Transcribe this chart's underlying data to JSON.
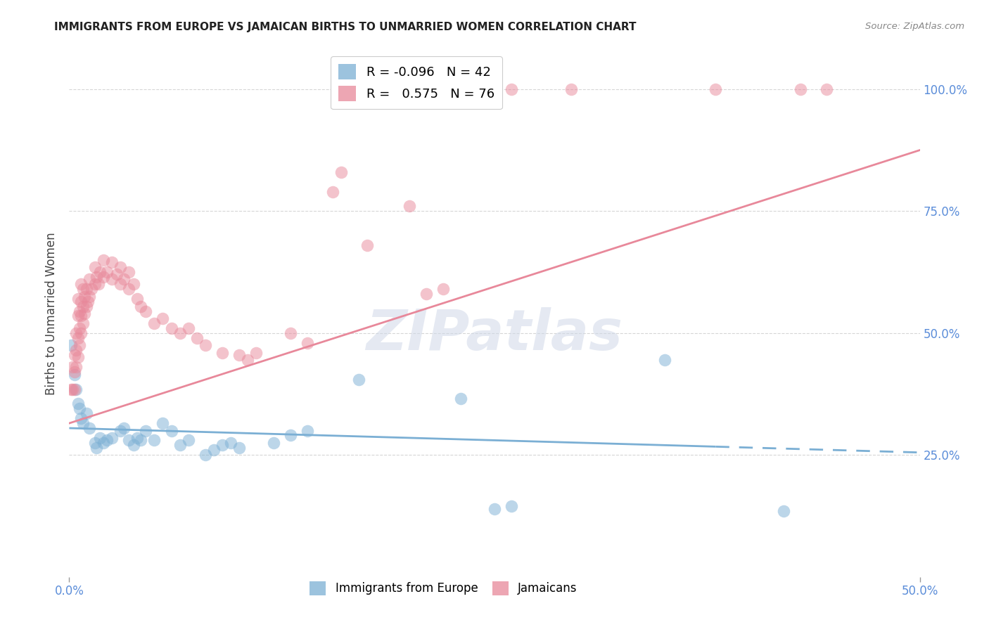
{
  "title": "IMMIGRANTS FROM EUROPE VS JAMAICAN BIRTHS TO UNMARRIED WOMEN CORRELATION CHART",
  "source": "Source: ZipAtlas.com",
  "ylabel": "Births to Unmarried Women",
  "xlim": [
    0.0,
    0.5
  ],
  "ylim": [
    0.0,
    1.08
  ],
  "blue_color": "#7bafd4",
  "pink_color": "#e8889a",
  "legend_blue_R": "-0.096",
  "legend_blue_N": "42",
  "legend_pink_R": "0.575",
  "legend_pink_N": "76",
  "blue_scatter": [
    [
      0.001,
      0.475
    ],
    [
      0.003,
      0.415
    ],
    [
      0.004,
      0.385
    ],
    [
      0.005,
      0.355
    ],
    [
      0.006,
      0.345
    ],
    [
      0.007,
      0.325
    ],
    [
      0.008,
      0.315
    ],
    [
      0.01,
      0.335
    ],
    [
      0.012,
      0.305
    ],
    [
      0.015,
      0.275
    ],
    [
      0.016,
      0.265
    ],
    [
      0.018,
      0.285
    ],
    [
      0.02,
      0.275
    ],
    [
      0.022,
      0.28
    ],
    [
      0.025,
      0.285
    ],
    [
      0.03,
      0.3
    ],
    [
      0.032,
      0.305
    ],
    [
      0.035,
      0.28
    ],
    [
      0.038,
      0.27
    ],
    [
      0.04,
      0.285
    ],
    [
      0.042,
      0.28
    ],
    [
      0.045,
      0.3
    ],
    [
      0.05,
      0.28
    ],
    [
      0.055,
      0.315
    ],
    [
      0.06,
      0.3
    ],
    [
      0.065,
      0.27
    ],
    [
      0.07,
      0.28
    ],
    [
      0.08,
      0.25
    ],
    [
      0.085,
      0.26
    ],
    [
      0.09,
      0.27
    ],
    [
      0.095,
      0.275
    ],
    [
      0.1,
      0.265
    ],
    [
      0.12,
      0.275
    ],
    [
      0.13,
      0.29
    ],
    [
      0.14,
      0.3
    ],
    [
      0.17,
      0.405
    ],
    [
      0.23,
      0.365
    ],
    [
      0.25,
      0.14
    ],
    [
      0.26,
      0.145
    ],
    [
      0.35,
      0.445
    ],
    [
      0.42,
      0.135
    ]
  ],
  "pink_scatter": [
    [
      0.001,
      0.385
    ],
    [
      0.002,
      0.385
    ],
    [
      0.002,
      0.43
    ],
    [
      0.003,
      0.385
    ],
    [
      0.003,
      0.42
    ],
    [
      0.003,
      0.455
    ],
    [
      0.004,
      0.43
    ],
    [
      0.004,
      0.465
    ],
    [
      0.004,
      0.5
    ],
    [
      0.005,
      0.45
    ],
    [
      0.005,
      0.49
    ],
    [
      0.005,
      0.535
    ],
    [
      0.005,
      0.57
    ],
    [
      0.006,
      0.475
    ],
    [
      0.006,
      0.51
    ],
    [
      0.006,
      0.545
    ],
    [
      0.007,
      0.5
    ],
    [
      0.007,
      0.535
    ],
    [
      0.007,
      0.565
    ],
    [
      0.007,
      0.6
    ],
    [
      0.008,
      0.52
    ],
    [
      0.008,
      0.555
    ],
    [
      0.008,
      0.59
    ],
    [
      0.009,
      0.54
    ],
    [
      0.009,
      0.575
    ],
    [
      0.01,
      0.555
    ],
    [
      0.01,
      0.59
    ],
    [
      0.011,
      0.565
    ],
    [
      0.012,
      0.575
    ],
    [
      0.012,
      0.61
    ],
    [
      0.013,
      0.59
    ],
    [
      0.015,
      0.6
    ],
    [
      0.015,
      0.635
    ],
    [
      0.016,
      0.615
    ],
    [
      0.017,
      0.6
    ],
    [
      0.018,
      0.625
    ],
    [
      0.02,
      0.615
    ],
    [
      0.02,
      0.65
    ],
    [
      0.022,
      0.625
    ],
    [
      0.025,
      0.61
    ],
    [
      0.025,
      0.645
    ],
    [
      0.028,
      0.62
    ],
    [
      0.03,
      0.6
    ],
    [
      0.03,
      0.635
    ],
    [
      0.032,
      0.61
    ],
    [
      0.035,
      0.59
    ],
    [
      0.035,
      0.625
    ],
    [
      0.038,
      0.6
    ],
    [
      0.04,
      0.57
    ],
    [
      0.042,
      0.555
    ],
    [
      0.045,
      0.545
    ],
    [
      0.05,
      0.52
    ],
    [
      0.055,
      0.53
    ],
    [
      0.06,
      0.51
    ],
    [
      0.065,
      0.5
    ],
    [
      0.07,
      0.51
    ],
    [
      0.075,
      0.49
    ],
    [
      0.08,
      0.475
    ],
    [
      0.09,
      0.46
    ],
    [
      0.1,
      0.455
    ],
    [
      0.105,
      0.445
    ],
    [
      0.11,
      0.46
    ],
    [
      0.13,
      0.5
    ],
    [
      0.14,
      0.48
    ],
    [
      0.155,
      0.79
    ],
    [
      0.16,
      0.83
    ],
    [
      0.175,
      0.68
    ],
    [
      0.2,
      0.76
    ],
    [
      0.21,
      0.58
    ],
    [
      0.22,
      0.59
    ],
    [
      0.26,
      1.0
    ],
    [
      0.295,
      1.0
    ],
    [
      0.38,
      1.0
    ],
    [
      0.43,
      1.0
    ],
    [
      0.445,
      1.0
    ]
  ],
  "blue_line_solid": [
    [
      0.0,
      0.305
    ],
    [
      0.38,
      0.267
    ]
  ],
  "blue_line_dash": [
    [
      0.38,
      0.267
    ],
    [
      0.5,
      0.255
    ]
  ],
  "pink_line": [
    [
      0.0,
      0.315
    ],
    [
      0.5,
      0.875
    ]
  ],
  "watermark": "ZIPatlas",
  "grid_color": "#cccccc",
  "grid_yticks": [
    0.25,
    0.5,
    0.75,
    1.0
  ]
}
